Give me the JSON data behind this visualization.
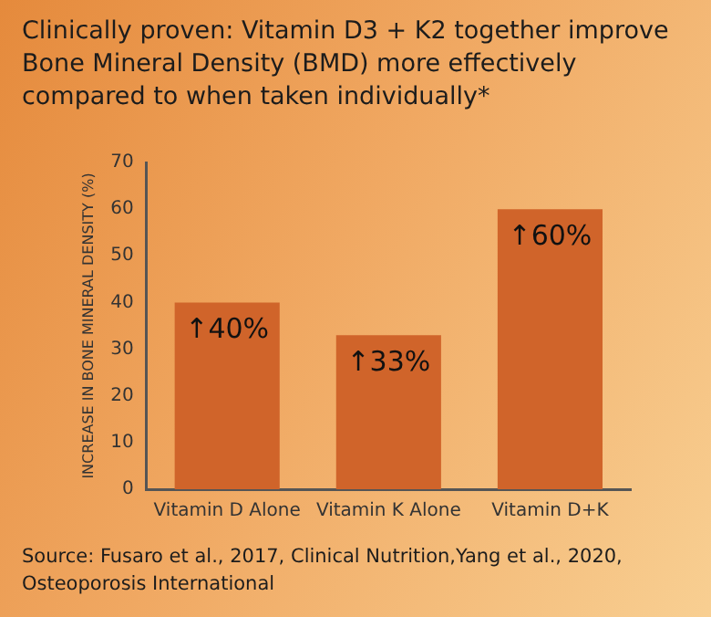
{
  "chart_data": {
    "type": "bar",
    "title": "Clinically proven: Vitamin D3 + K2 together improve Bone Mineral Density (BMD) more effectively compared to when taken individually*",
    "ylabel": "INCREASE IN BONE MINERAL DENSITY (%)",
    "categories": [
      "Vitamin D Alone",
      "Vitamin K Alone",
      "Vitamin D+K"
    ],
    "values": [
      40,
      33,
      60
    ],
    "value_labels": [
      "↑40%",
      "↑33%",
      "↑60%"
    ],
    "color": "#d0642a",
    "ylim": [
      0,
      70
    ],
    "yticks": [
      0,
      10,
      20,
      30,
      40,
      50,
      60,
      70
    ],
    "grid": false,
    "annotations": [
      "Source: Fusaro et al., 2017, Clinical Nutrition,Yang et al., 2020, Osteoporosis International"
    ]
  }
}
